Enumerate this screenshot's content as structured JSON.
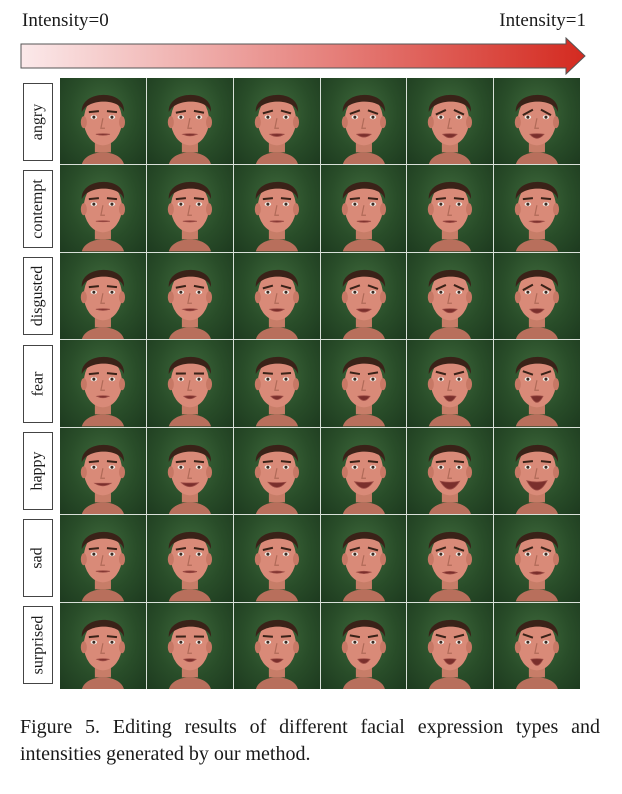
{
  "intensity_axis": {
    "start_label": "Intensity=0",
    "end_label": "Intensity=1",
    "gradient_start_color": "#fbe9ea",
    "gradient_end_color": "#d42a20"
  },
  "rows": [
    {
      "label": "angry"
    },
    {
      "label": "contempt"
    },
    {
      "label": "disgusted"
    },
    {
      "label": "fear"
    },
    {
      "label": "happy"
    },
    {
      "label": "sad"
    },
    {
      "label": "surprised"
    }
  ],
  "columns": 6,
  "caption": "Figure 5. Editing results of different facial expression types and intensities generated by our method."
}
